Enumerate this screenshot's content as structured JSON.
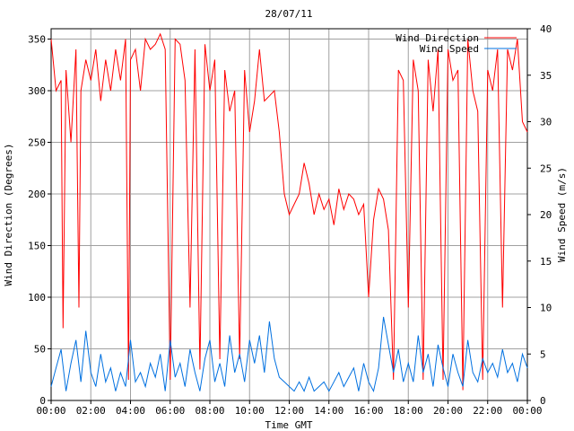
{
  "chart_data": {
    "type": "line",
    "title": "28/07/11",
    "xlabel": "Time GMT",
    "ylabel_left": "Wind Direction (Degrees)",
    "ylabel_right": "Wind Speed (m/s)",
    "x_unit": "hours",
    "xlim": [
      0,
      24
    ],
    "x_tick_values": [
      0,
      2,
      4,
      6,
      8,
      10,
      12,
      14,
      16,
      18,
      20,
      22,
      24
    ],
    "x_tick_labels": [
      "00:00",
      "02:00",
      "04:00",
      "06:00",
      "08:00",
      "10:00",
      "12:00",
      "14:00",
      "16:00",
      "18:00",
      "20:00",
      "22:00",
      "00:00"
    ],
    "ylim_left": [
      0,
      360
    ],
    "y_ticks_left": [
      0,
      50,
      100,
      150,
      200,
      250,
      300,
      350
    ],
    "ylim_right": [
      0,
      40
    ],
    "y_ticks_right": [
      0,
      5,
      10,
      15,
      20,
      25,
      30,
      35,
      40
    ],
    "grid": true,
    "legend_position": "top-right",
    "series": [
      {
        "name": "Wind Direction",
        "axis": "left",
        "color": "#ff0000",
        "x": [
          0,
          0.25,
          0.5,
          0.6,
          0.75,
          1.0,
          1.25,
          1.4,
          1.5,
          1.75,
          2.0,
          2.25,
          2.5,
          2.75,
          3.0,
          3.25,
          3.5,
          3.75,
          3.9,
          4.0,
          4.25,
          4.5,
          4.75,
          5.0,
          5.25,
          5.5,
          5.75,
          6.0,
          6.25,
          6.5,
          6.75,
          7.0,
          7.25,
          7.5,
          7.75,
          8.0,
          8.25,
          8.5,
          8.75,
          9.0,
          9.25,
          9.5,
          9.75,
          10.0,
          10.25,
          10.5,
          10.75,
          11.0,
          11.25,
          11.5,
          11.75,
          12.0,
          12.25,
          12.5,
          12.75,
          13.0,
          13.25,
          13.5,
          13.75,
          14.0,
          14.25,
          14.5,
          14.75,
          15.0,
          15.25,
          15.5,
          15.75,
          16.0,
          16.25,
          16.5,
          16.75,
          17.0,
          17.25,
          17.5,
          17.75,
          18.0,
          18.25,
          18.5,
          18.75,
          19.0,
          19.25,
          19.5,
          19.75,
          20.0,
          20.25,
          20.5,
          20.75,
          21.0,
          21.25,
          21.5,
          21.75,
          22.0,
          22.25,
          22.5,
          22.75,
          23.0,
          23.25,
          23.5,
          23.75,
          24.0
        ],
        "values": [
          350,
          300,
          310,
          70,
          320,
          250,
          340,
          90,
          300,
          330,
          310,
          340,
          290,
          330,
          300,
          340,
          310,
          350,
          20,
          330,
          340,
          300,
          350,
          340,
          345,
          355,
          340,
          20,
          350,
          345,
          310,
          90,
          340,
          30,
          345,
          300,
          330,
          40,
          320,
          280,
          300,
          40,
          320,
          260,
          290,
          340,
          290,
          295,
          300,
          260,
          200,
          180,
          190,
          200,
          230,
          210,
          180,
          200,
          185,
          195,
          170,
          205,
          185,
          200,
          195,
          180,
          190,
          100,
          175,
          205,
          195,
          165,
          20,
          320,
          310,
          90,
          330,
          300,
          20,
          330,
          280,
          340,
          20,
          340,
          310,
          320,
          10,
          350,
          300,
          280,
          20,
          320,
          300,
          340,
          90,
          340,
          320,
          350,
          270,
          260
        ]
      },
      {
        "name": "Wind Speed",
        "axis": "right",
        "color": "#0070e0",
        "x": [
          0,
          0.25,
          0.5,
          0.75,
          1.0,
          1.25,
          1.5,
          1.75,
          2.0,
          2.25,
          2.5,
          2.75,
          3.0,
          3.25,
          3.5,
          3.75,
          4.0,
          4.25,
          4.5,
          4.75,
          5.0,
          5.25,
          5.5,
          5.75,
          6.0,
          6.25,
          6.5,
          6.75,
          7.0,
          7.25,
          7.5,
          7.75,
          8.0,
          8.25,
          8.5,
          8.75,
          9.0,
          9.25,
          9.5,
          9.75,
          10.0,
          10.25,
          10.5,
          10.75,
          11.0,
          11.25,
          11.5,
          11.75,
          12.0,
          12.25,
          12.5,
          12.75,
          13.0,
          13.25,
          13.5,
          13.75,
          14.0,
          14.25,
          14.5,
          14.75,
          15.0,
          15.25,
          15.5,
          15.75,
          16.0,
          16.25,
          16.5,
          16.75,
          17.0,
          17.25,
          17.5,
          17.75,
          18.0,
          18.25,
          18.5,
          18.75,
          19.0,
          19.25,
          19.5,
          19.75,
          20.0,
          20.25,
          20.5,
          20.75,
          21.0,
          21.25,
          21.5,
          21.75,
          22.0,
          22.25,
          22.5,
          22.75,
          23.0,
          23.25,
          23.5,
          23.75,
          24.0
        ],
        "values": [
          1.5,
          3.5,
          5.5,
          1.0,
          4.0,
          6.5,
          2.0,
          7.5,
          3.0,
          1.5,
          5.0,
          2.0,
          3.5,
          1.0,
          3.0,
          1.5,
          6.5,
          2.0,
          3.0,
          1.5,
          4.0,
          2.5,
          5.0,
          1.0,
          6.5,
          2.5,
          4.0,
          1.5,
          5.5,
          3.0,
          1.0,
          4.5,
          6.5,
          2.0,
          4.0,
          1.5,
          7.0,
          3.0,
          5.0,
          2.0,
          6.5,
          4.0,
          7.0,
          3.0,
          8.5,
          4.5,
          2.5,
          2.0,
          1.5,
          1.0,
          2.0,
          1.0,
          2.5,
          1.0,
          1.5,
          2.0,
          1.0,
          2.0,
          3.0,
          1.5,
          2.5,
          3.5,
          1.0,
          4.0,
          2.0,
          1.0,
          3.5,
          9.0,
          6.0,
          3.0,
          5.5,
          2.0,
          4.0,
          2.0,
          7.0,
          3.0,
          5.0,
          1.5,
          6.0,
          3.5,
          1.5,
          5.0,
          3.0,
          1.5,
          6.5,
          3.0,
          2.0,
          4.5,
          3.0,
          4.0,
          2.5,
          5.5,
          3.0,
          4.0,
          2.0,
          5.0,
          3.5
        ]
      }
    ]
  }
}
